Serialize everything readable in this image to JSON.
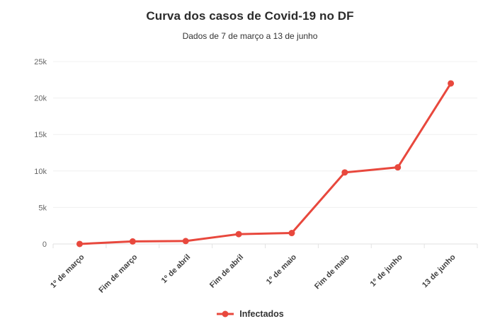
{
  "header": {
    "title": "Curva dos casos de Covid-19 no DF",
    "subtitle": "Dados de 7 de março a 13 de junho"
  },
  "colors": {
    "series_red": "#e8483d",
    "gridline": "#f0f0f0",
    "axis_line": "#e2e2e2",
    "title_text": "#2b2b2b",
    "y_label_text": "#666666",
    "x_label_text": "#3f3f3f",
    "legend_text": "#333333"
  },
  "legend": {
    "items": [
      {
        "label": "Infectados",
        "color": "#e8483d",
        "marker": "line-dot"
      }
    ]
  },
  "chart_data": {
    "type": "line",
    "title": "Curva dos casos de Covid-19 no DF",
    "subtitle": "Dados de 7 de março a 13 de junho",
    "categories": [
      "1º de março",
      "Fim de março",
      "1º de abril",
      "Fim de abril",
      "1º de maio",
      "Fim de maio",
      "1º de junho",
      "13 de junho"
    ],
    "series": [
      {
        "name": "Infectados",
        "color": "#e8483d",
        "values": [
          1,
          350,
          400,
          1350,
          1500,
          9800,
          10500,
          22000
        ]
      }
    ],
    "ylim": [
      0,
      25000
    ],
    "ytick_values": [
      0,
      5000,
      10000,
      15000,
      20000,
      25000
    ],
    "ytick_labels": [
      "0",
      "5k",
      "10k",
      "15k",
      "20k",
      "25k"
    ],
    "grid": true,
    "legend_position": "bottom",
    "x_label_rotation": -45
  }
}
